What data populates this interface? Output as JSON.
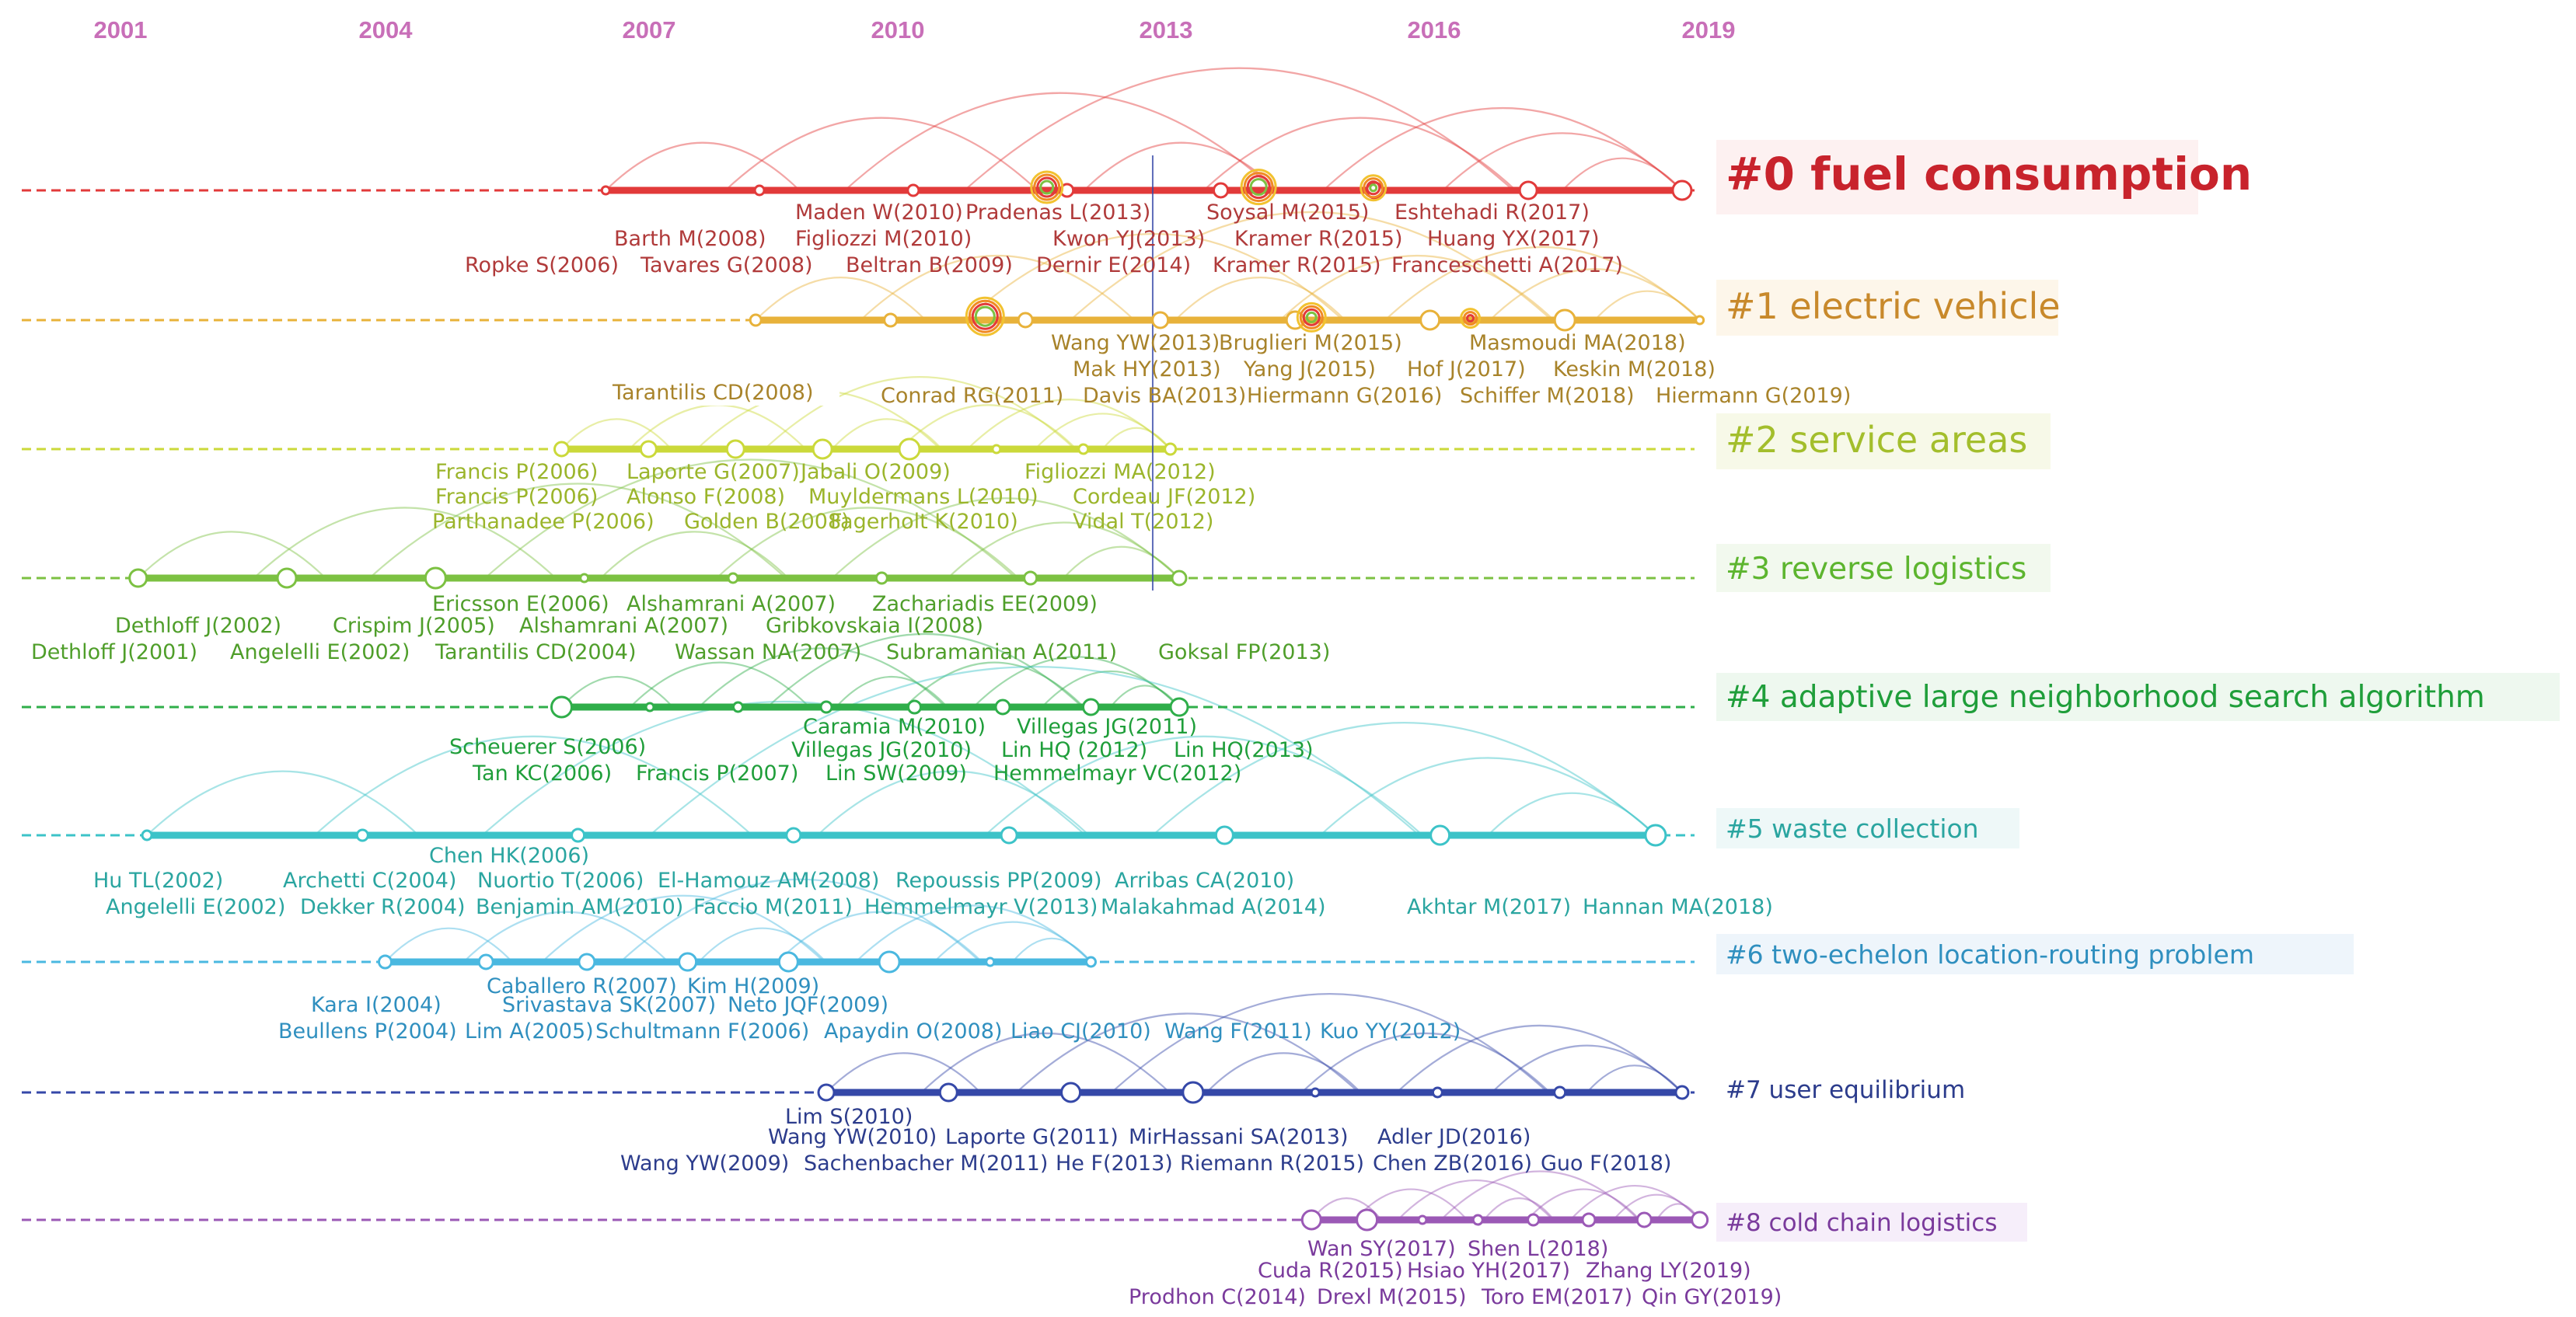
{
  "chart_data": {
    "type": "timeline",
    "title": "",
    "x_range": [
      2001,
      2019
    ],
    "year_ticks": [
      "2001",
      "2004",
      "2007",
      "2010",
      "2013",
      "2016",
      "2019"
    ],
    "clusters": [
      {
        "id": 0,
        "label": "#0 fuel consumption",
        "color": "#c8232c",
        "lineColor": "#e23a3a",
        "start": 2006.5,
        "end": 2018.7,
        "refs": [
          [
            "Maden W(2010)",
            "Pradenas L(2013)",
            "Soysal M(2015)",
            "Eshtehadi R(2017)"
          ],
          [
            "Barth M(2008)",
            "Figliozzi M(2010)",
            "Kwon YJ(2013)",
            "Kramer R(2015)",
            "Huang YX(2017)"
          ],
          [
            "Ropke S(2006)",
            "Tavares G(2008)",
            "Beltran B(2009)",
            "Dernir E(2014)",
            "Kramer R(2015)",
            "Franceschetti A(2017)"
          ]
        ]
      },
      {
        "id": 1,
        "label": "#1 electric vehicle",
        "color": "#c8892b",
        "lineColor": "#e8b23a",
        "start": 2008.2,
        "end": 2018.9,
        "refs": [
          [
            "Wang YW(2013)",
            "Bruglieri M(2015)",
            "Masmoudi MA(2018)"
          ],
          [
            "Mak HY(2013)",
            "Yang J(2015)",
            "Hof J(2017)",
            "Keskin M(2018)"
          ],
          [
            "Conrad RG(2011)",
            "Davis BA(2013)",
            "Hiermann G(2016)",
            "Schiffer M(2018)",
            "Hiermann G(2019)"
          ]
        ],
        "extra_ref": "Tarantilis CD(2008)"
      },
      {
        "id": 2,
        "label": "#2 service areas",
        "color": "#a3be2c",
        "lineColor": "#cbd93a",
        "start": 2006.0,
        "end": 2012.9,
        "refs": [
          [
            "Francis P(2006)",
            "Laporte G(2007)",
            "Jabali O(2009)",
            "Figliozzi MA(2012)"
          ],
          [
            "Francis P(2006)",
            "Alonso F(2008)",
            "Muyldermans L(2010)",
            "Cordeau JF(2012)"
          ],
          [
            "Parthanadee P(2006)",
            "Golden B(2008)",
            "Fagerholt K(2010)",
            "Vidal T(2012)"
          ]
        ]
      },
      {
        "id": 3,
        "label": "#3 reverse logistics",
        "color": "#5db52f",
        "lineColor": "#7cc142",
        "start": 2001.2,
        "end": 2013.0,
        "refs": [
          [
            "Ericsson E(2006)",
            "Alshamrani A(2007)",
            "Zachariadis EE(2009)"
          ],
          [
            "Crispim J(2005)",
            "Alshamrani A(2007)",
            "Gribkovskaia I(2008)"
          ],
          [
            "Dethloff J(2001)",
            "Angelelli E(2002)",
            "Tarantilis CD(2004)",
            "Wassan NA(2007)",
            "Subramanian A(2011)",
            "Goksal FP(2013)"
          ]
        ],
        "extra_ref": "Dethloff J(2002)"
      },
      {
        "id": 4,
        "label": "#4 adaptive large neighborhood search algorithm",
        "color": "#1f9e3a",
        "lineColor": "#2fae4a",
        "start": 2006.0,
        "end": 2013.0,
        "refs": [
          [
            "Caramia M(2010)",
            "Villegas JG(2011)"
          ],
          [
            "Villegas JG(2010)",
            "Lin HQ (2012)",
            "Lin HQ(2013)"
          ],
          [
            "Tan KC(2006)",
            "Francis P(2007)",
            "Lin SW(2009)",
            "Hemmelmayr VC(2012)"
          ]
        ],
        "extra_ref": "Scheuerer S(2006)"
      },
      {
        "id": 5,
        "label": "#5 waste collection",
        "color": "#2aa5a0",
        "lineColor": "#3cc3c8",
        "start": 2001.3,
        "end": 2018.4,
        "refs": [
          [
            "Archetti C(2004)",
            "Nuortio T(2006)",
            "El-Hamouz AM(2008)",
            "Repoussis PP(2009)",
            "Arribas CA(2010)"
          ],
          [
            "Dekker R(2004)",
            "Benjamin AM(2010)",
            "Faccio M(2011)",
            "Hemmelmayr V(2013)",
            "Malakahmad A(2014)"
          ]
        ],
        "extra_refs": [
          "Chen HK(2006)",
          "Hu TL(2002)",
          "Angelelli E(2002)",
          "Akhtar M(2017)",
          "Hannan MA(2018)"
        ]
      },
      {
        "id": 6,
        "label": "#6 two-echelon location-routing problem",
        "color": "#2f8fbf",
        "lineColor": "#4ab8e0",
        "start": 2004.0,
        "end": 2012.0,
        "refs": [
          [
            "Caballero R(2007)",
            "Kim H(2009)"
          ],
          [
            "Kara I(2004)",
            "Srivastava SK(2007)",
            "Neto JQF(2009)"
          ],
          [
            "Beullens P(2004)",
            "Lim A(2005)",
            "Schultmann F(2006)",
            "Apaydin O(2008)",
            "Liao CJ(2010)",
            "Wang F(2011)",
            "Kuo YY(2012)"
          ]
        ]
      },
      {
        "id": 7,
        "label": "#7 user equilibrium",
        "color": "#2c3c8c",
        "lineColor": "#3548a8",
        "start": 2009.0,
        "end": 2018.7,
        "refs": [
          [
            "Lim S(2010)"
          ],
          [
            "Wang YW(2010)",
            "Laporte G(2011)",
            "MirHassani SA(2013)",
            "Adler JD(2016)"
          ],
          [
            "Wang YW(2009)",
            "Sachenbacher M(2011)",
            "He F(2013)",
            "Riemann R(2015)",
            "Chen ZB(2016)",
            "Guo F(2018)"
          ]
        ]
      },
      {
        "id": 8,
        "label": "#8 cold chain logistics",
        "color": "#7a3a9c",
        "lineColor": "#9b59b6",
        "start": 2014.5,
        "end": 2018.9,
        "refs": [
          [
            "Wan SY(2017)",
            "Shen L(2018)"
          ],
          [
            "Cuda R(2015)",
            "Hsiao YH(2017)",
            "Zhang LY(2019)"
          ],
          [
            "Prodhon C(2014)",
            "Drexl M(2015)",
            "Toro EM(2017)",
            "Qin GY(2019)"
          ]
        ]
      }
    ]
  }
}
